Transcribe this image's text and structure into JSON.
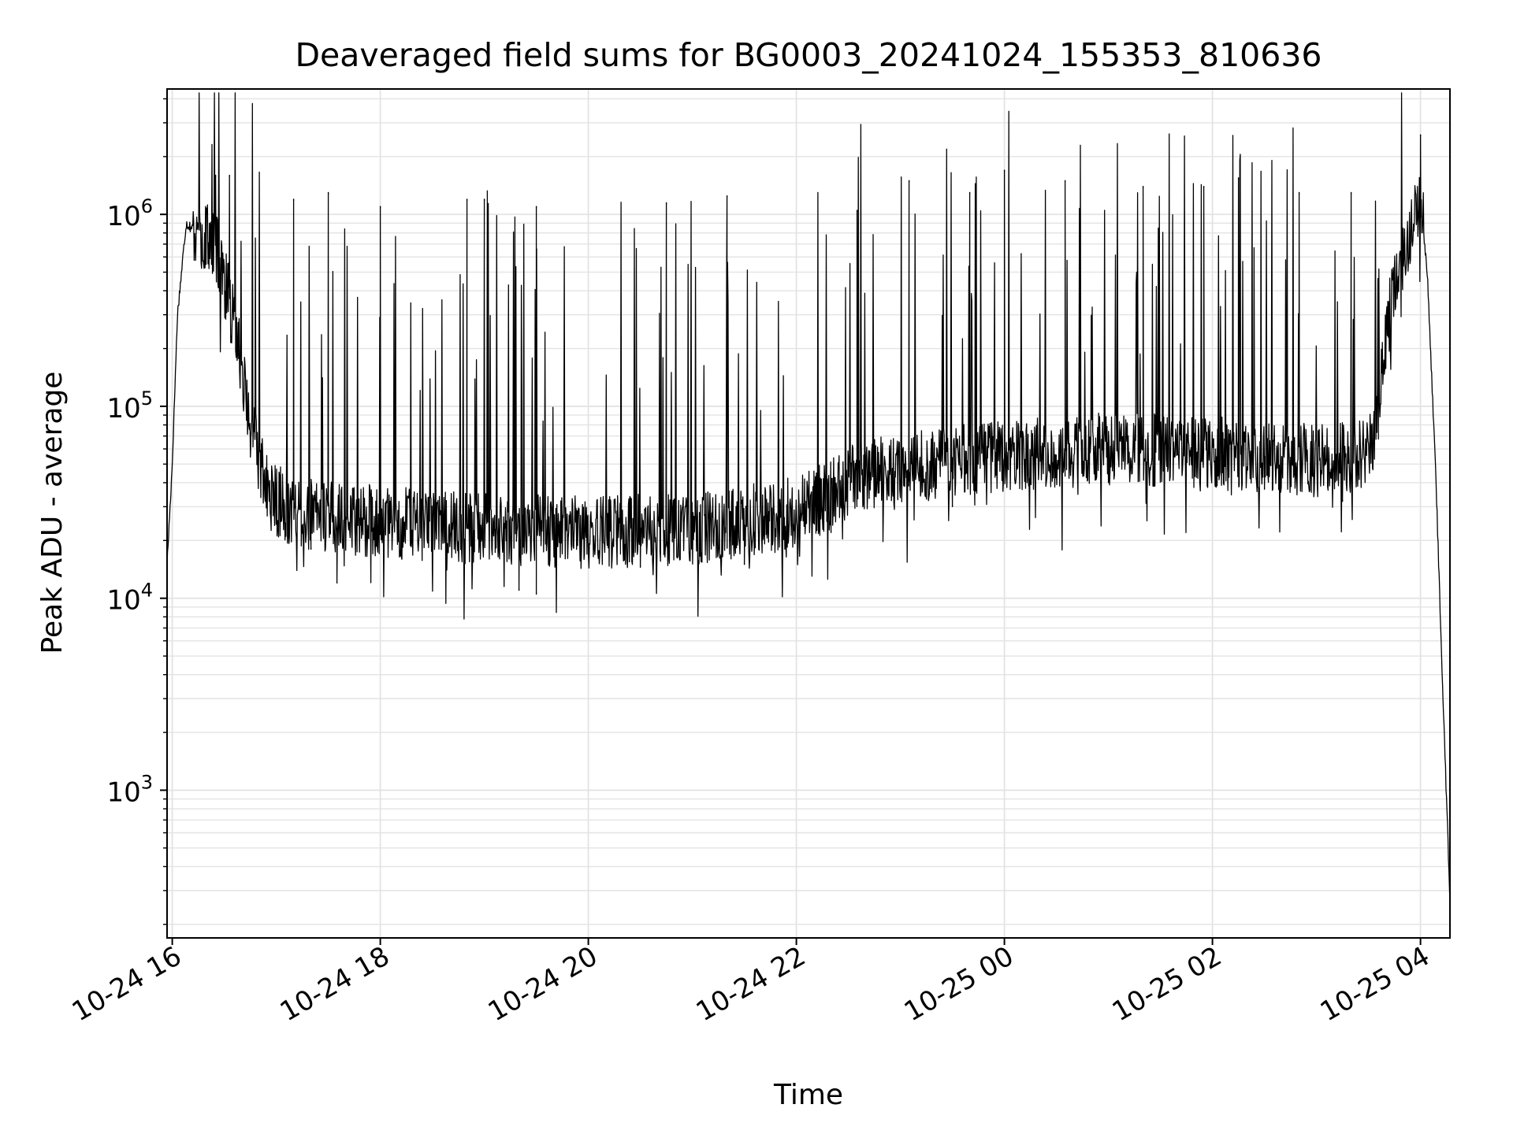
{
  "chart_data": {
    "type": "line",
    "title": "Deaveraged field sums for BG0003_20241024_155353_810636",
    "xlabel": "Time",
    "ylabel": "Peak ADU - average",
    "y_scale": "log",
    "grid": true,
    "legend": "none",
    "xlim": [
      "2024-10-24 15:57",
      "2024-10-25 04:17"
    ],
    "ylim": [
      170,
      4500000
    ],
    "x_ticks": [
      {
        "t": "2024-10-24 16:00",
        "label": "10-24 16"
      },
      {
        "t": "2024-10-24 18:00",
        "label": "10-24 18"
      },
      {
        "t": "2024-10-24 20:00",
        "label": "10-24 20"
      },
      {
        "t": "2024-10-24 22:00",
        "label": "10-24 22"
      },
      {
        "t": "2024-10-25 00:00",
        "label": "10-25 00"
      },
      {
        "t": "2024-10-25 02:00",
        "label": "10-25 02"
      },
      {
        "t": "2024-10-25 04:00",
        "label": "10-25 04"
      }
    ],
    "y_ticks": [
      {
        "value": 1000,
        "base": "10",
        "exp": "3"
      },
      {
        "value": 10000,
        "base": "10",
        "exp": "4"
      },
      {
        "value": 100000,
        "base": "10",
        "exp": "5"
      },
      {
        "value": 1000000,
        "base": "10",
        "exp": "6"
      }
    ],
    "series": [
      {
        "color": "#000000",
        "baseline": [
          {
            "t": "2024-10-24 15:57",
            "y": 15000
          },
          {
            "t": "2024-10-24 16:00",
            "y": 50000
          },
          {
            "t": "2024-10-24 16:03",
            "y": 300000
          },
          {
            "t": "2024-10-24 16:08",
            "y": 900000
          },
          {
            "t": "2024-10-24 16:15",
            "y": 800000
          },
          {
            "t": "2024-10-24 16:25",
            "y": 700000
          },
          {
            "t": "2024-10-24 16:35",
            "y": 300000
          },
          {
            "t": "2024-10-24 16:45",
            "y": 80000
          },
          {
            "t": "2024-10-24 16:55",
            "y": 35000
          },
          {
            "t": "2024-10-24 17:10",
            "y": 28000
          },
          {
            "t": "2024-10-24 18:00",
            "y": 25000
          },
          {
            "t": "2024-10-24 19:00",
            "y": 23000
          },
          {
            "t": "2024-10-24 20:00",
            "y": 22000
          },
          {
            "t": "2024-10-24 21:00",
            "y": 23000
          },
          {
            "t": "2024-10-24 21:30",
            "y": 25000
          },
          {
            "t": "2024-10-24 22:00",
            "y": 28000
          },
          {
            "t": "2024-10-24 22:30",
            "y": 40000
          },
          {
            "t": "2024-10-24 23:00",
            "y": 48000
          },
          {
            "t": "2024-10-25 00:00",
            "y": 55000
          },
          {
            "t": "2024-10-25 01:00",
            "y": 60000
          },
          {
            "t": "2024-10-25 02:00",
            "y": 58000
          },
          {
            "t": "2024-10-25 03:00",
            "y": 52000
          },
          {
            "t": "2024-10-25 03:30",
            "y": 55000
          },
          {
            "t": "2024-10-25 03:36",
            "y": 100000
          },
          {
            "t": "2024-10-25 03:43",
            "y": 350000
          },
          {
            "t": "2024-10-25 03:52",
            "y": 650000
          },
          {
            "t": "2024-10-25 04:00",
            "y": 1200000
          },
          {
            "t": "2024-10-25 04:04",
            "y": 500000
          },
          {
            "t": "2024-10-25 04:09",
            "y": 40000
          },
          {
            "t": "2024-10-25 04:13",
            "y": 3000
          },
          {
            "t": "2024-10-25 04:17",
            "y": 270
          }
        ],
        "peaks": [
          {
            "t": "2024-10-24 16:25",
            "y": 1600000
          },
          {
            "t": "2024-10-24 16:33",
            "y": 1600000
          },
          {
            "t": "2024-10-24 17:10",
            "y": 1200000
          },
          {
            "t": "2024-10-24 17:30",
            "y": 1300000
          },
          {
            "t": "2024-10-24 18:00",
            "y": 1100000
          },
          {
            "t": "2024-10-24 18:50",
            "y": 1200000
          },
          {
            "t": "2024-10-24 19:00",
            "y": 1200000
          },
          {
            "t": "2024-10-24 19:30",
            "y": 1100000
          },
          {
            "t": "2024-10-24 20:45",
            "y": 1150000
          },
          {
            "t": "2024-10-24 21:20",
            "y": 1250000
          },
          {
            "t": "2024-10-24 22:35",
            "y": 1050000
          },
          {
            "t": "2024-10-24 23:05",
            "y": 1500000
          },
          {
            "t": "2024-10-24 23:40",
            "y": 1300000
          },
          {
            "t": "2024-10-25 00:00",
            "y": 1700000
          },
          {
            "t": "2024-10-25 00:35",
            "y": 1500000
          },
          {
            "t": "2024-10-25 01:20",
            "y": 1400000
          },
          {
            "t": "2024-10-25 01:55",
            "y": 1400000
          },
          {
            "t": "2024-10-25 02:15",
            "y": 1550000
          },
          {
            "t": "2024-10-25 02:50",
            "y": 1300000
          },
          {
            "t": "2024-10-25 03:20",
            "y": 1300000
          },
          {
            "t": "2024-10-25 04:00",
            "y": 2600000
          }
        ],
        "trough_floor": [
          {
            "t": "2024-10-24 17:20",
            "y": 18000
          },
          {
            "t": "2024-10-24 17:35",
            "y": 12000
          },
          {
            "t": "2024-10-24 18:30",
            "y": 14000
          },
          {
            "t": "2024-10-24 19:20",
            "y": 11000
          },
          {
            "t": "2024-10-24 19:30",
            "y": 10500
          },
          {
            "t": "2024-10-24 20:30",
            "y": 14500
          },
          {
            "t": "2024-10-24 21:30",
            "y": 15000
          },
          {
            "t": "2024-10-24 22:20",
            "y": 22000
          },
          {
            "t": "2024-10-24 23:30",
            "y": 30000
          },
          {
            "t": "2024-10-25 01:00",
            "y": 40000
          },
          {
            "t": "2024-10-25 02:30",
            "y": 37000
          },
          {
            "t": "2024-10-25 03:15",
            "y": 32000
          }
        ]
      }
    ]
  }
}
